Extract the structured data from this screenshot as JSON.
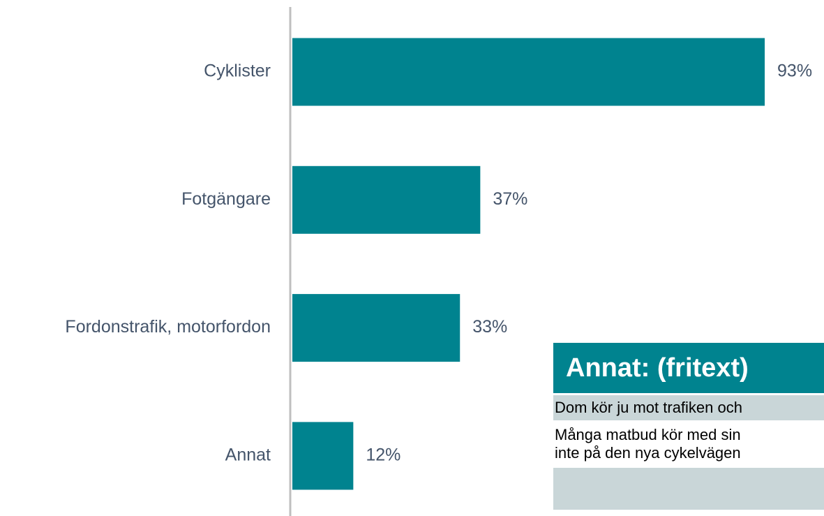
{
  "chart_data": {
    "type": "bar",
    "orientation": "horizontal",
    "categories": [
      "Cyklister",
      "Fotgängare",
      "Fordonstrafik, motorfordon",
      "Annat"
    ],
    "values": [
      93,
      37,
      33,
      12
    ],
    "value_labels": [
      "93%",
      "37%",
      "33%",
      "12%"
    ],
    "color": "#00838f"
  },
  "panel": {
    "title": "Annat: (fritext)",
    "rows": [
      [
        "Dom kör ju mot trafiken och"
      ],
      [
        "Många matbud kör med sin",
        "inte på den nya cykelvägen"
      ]
    ]
  }
}
